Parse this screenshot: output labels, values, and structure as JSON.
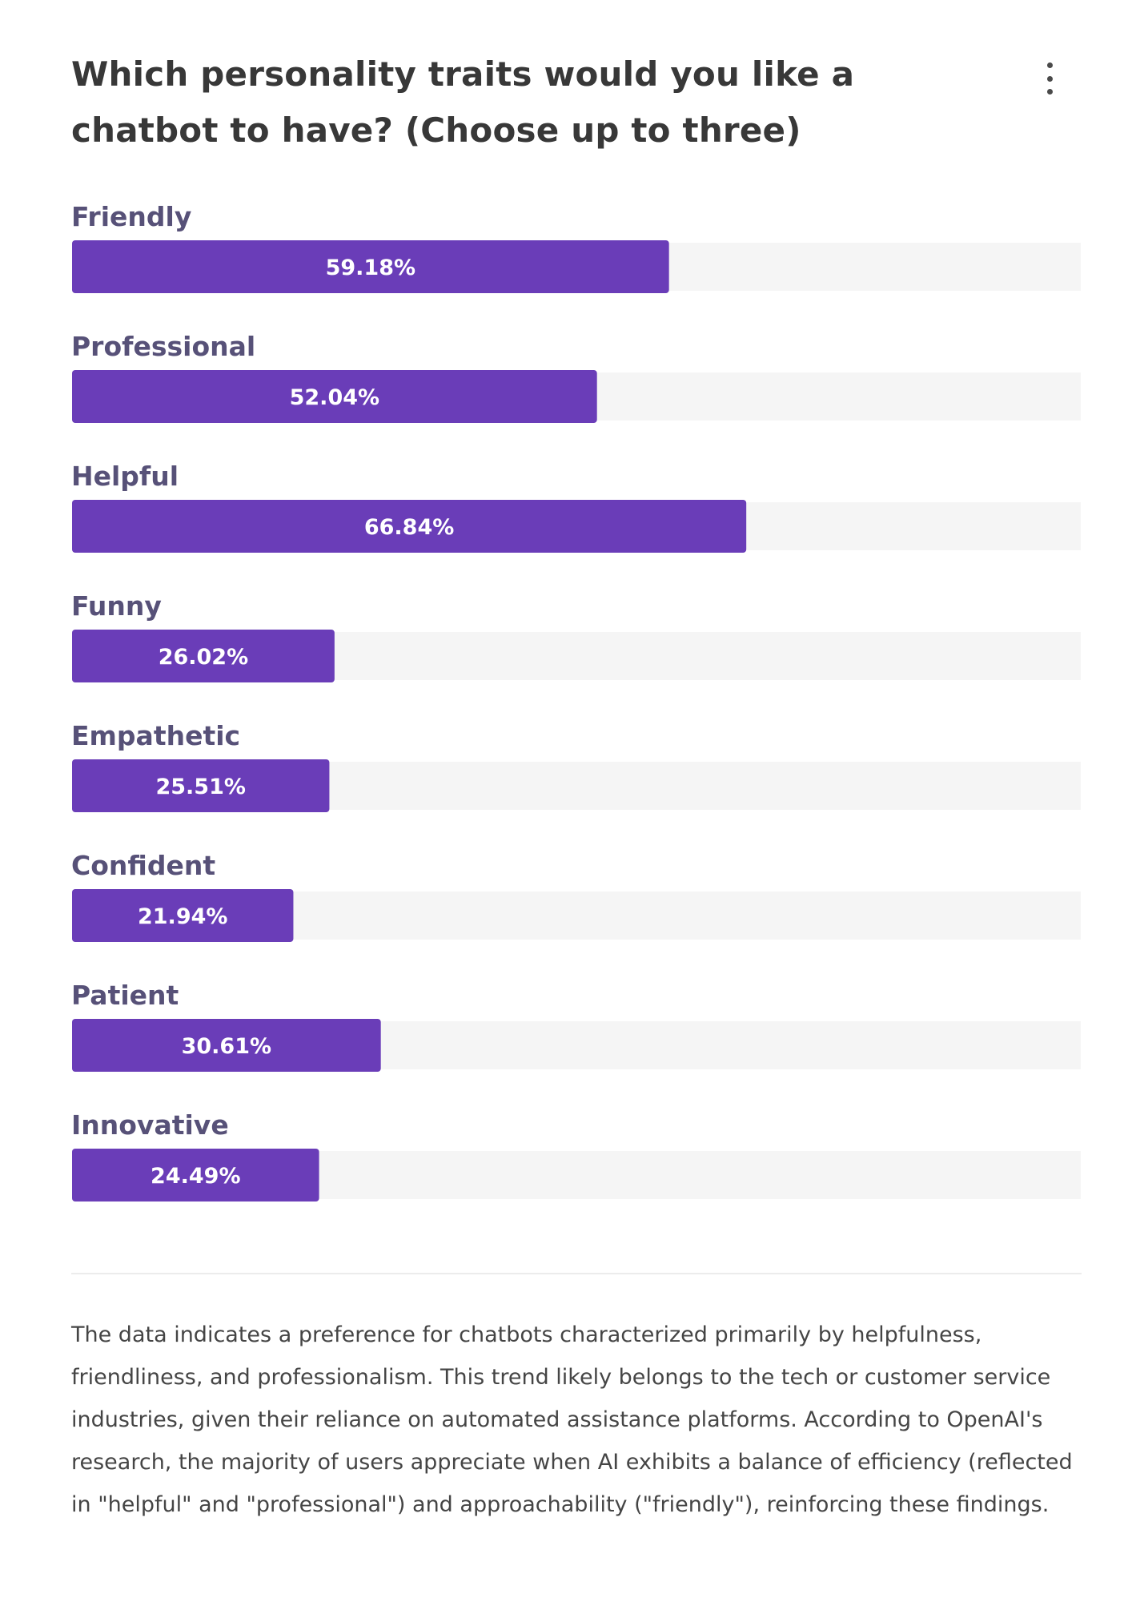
{
  "header": {
    "title": "Which personality traits would you like a chatbot to have? (Choose up to three)",
    "menu_icon": "more-vertical-icon"
  },
  "colors": {
    "bar": "#6a3db8",
    "track": "#f5f5f5",
    "label": "#575178",
    "value_text": "#ffffff"
  },
  "chart_data": {
    "type": "bar",
    "orientation": "horizontal",
    "categories": [
      "Friendly",
      "Professional",
      "Helpful",
      "Funny",
      "Empathetic",
      "Confident",
      "Patient",
      "Innovative"
    ],
    "values": [
      59.18,
      52.04,
      66.84,
      26.02,
      25.51,
      21.94,
      30.61,
      24.49
    ],
    "value_labels": [
      "59.18%",
      "52.04%",
      "66.84%",
      "26.02%",
      "25.51%",
      "21.94%",
      "30.61%",
      "24.49%"
    ],
    "xlim": [
      0,
      100
    ],
    "unit": "%",
    "grid": false,
    "legend": "none"
  },
  "summary": {
    "text": "The data indicates a preference for chatbots characterized primarily by helpfulness, friendliness, and professionalism. This trend likely belongs to the tech or customer service industries, given their reliance on automated assistance platforms. According to OpenAI's research, the majority of users appreciate when AI exhibits a balance of efficiency (reflected in \"helpful\" and \"professional\") and approachability (\"friendly\"), reinforcing these findings."
  }
}
